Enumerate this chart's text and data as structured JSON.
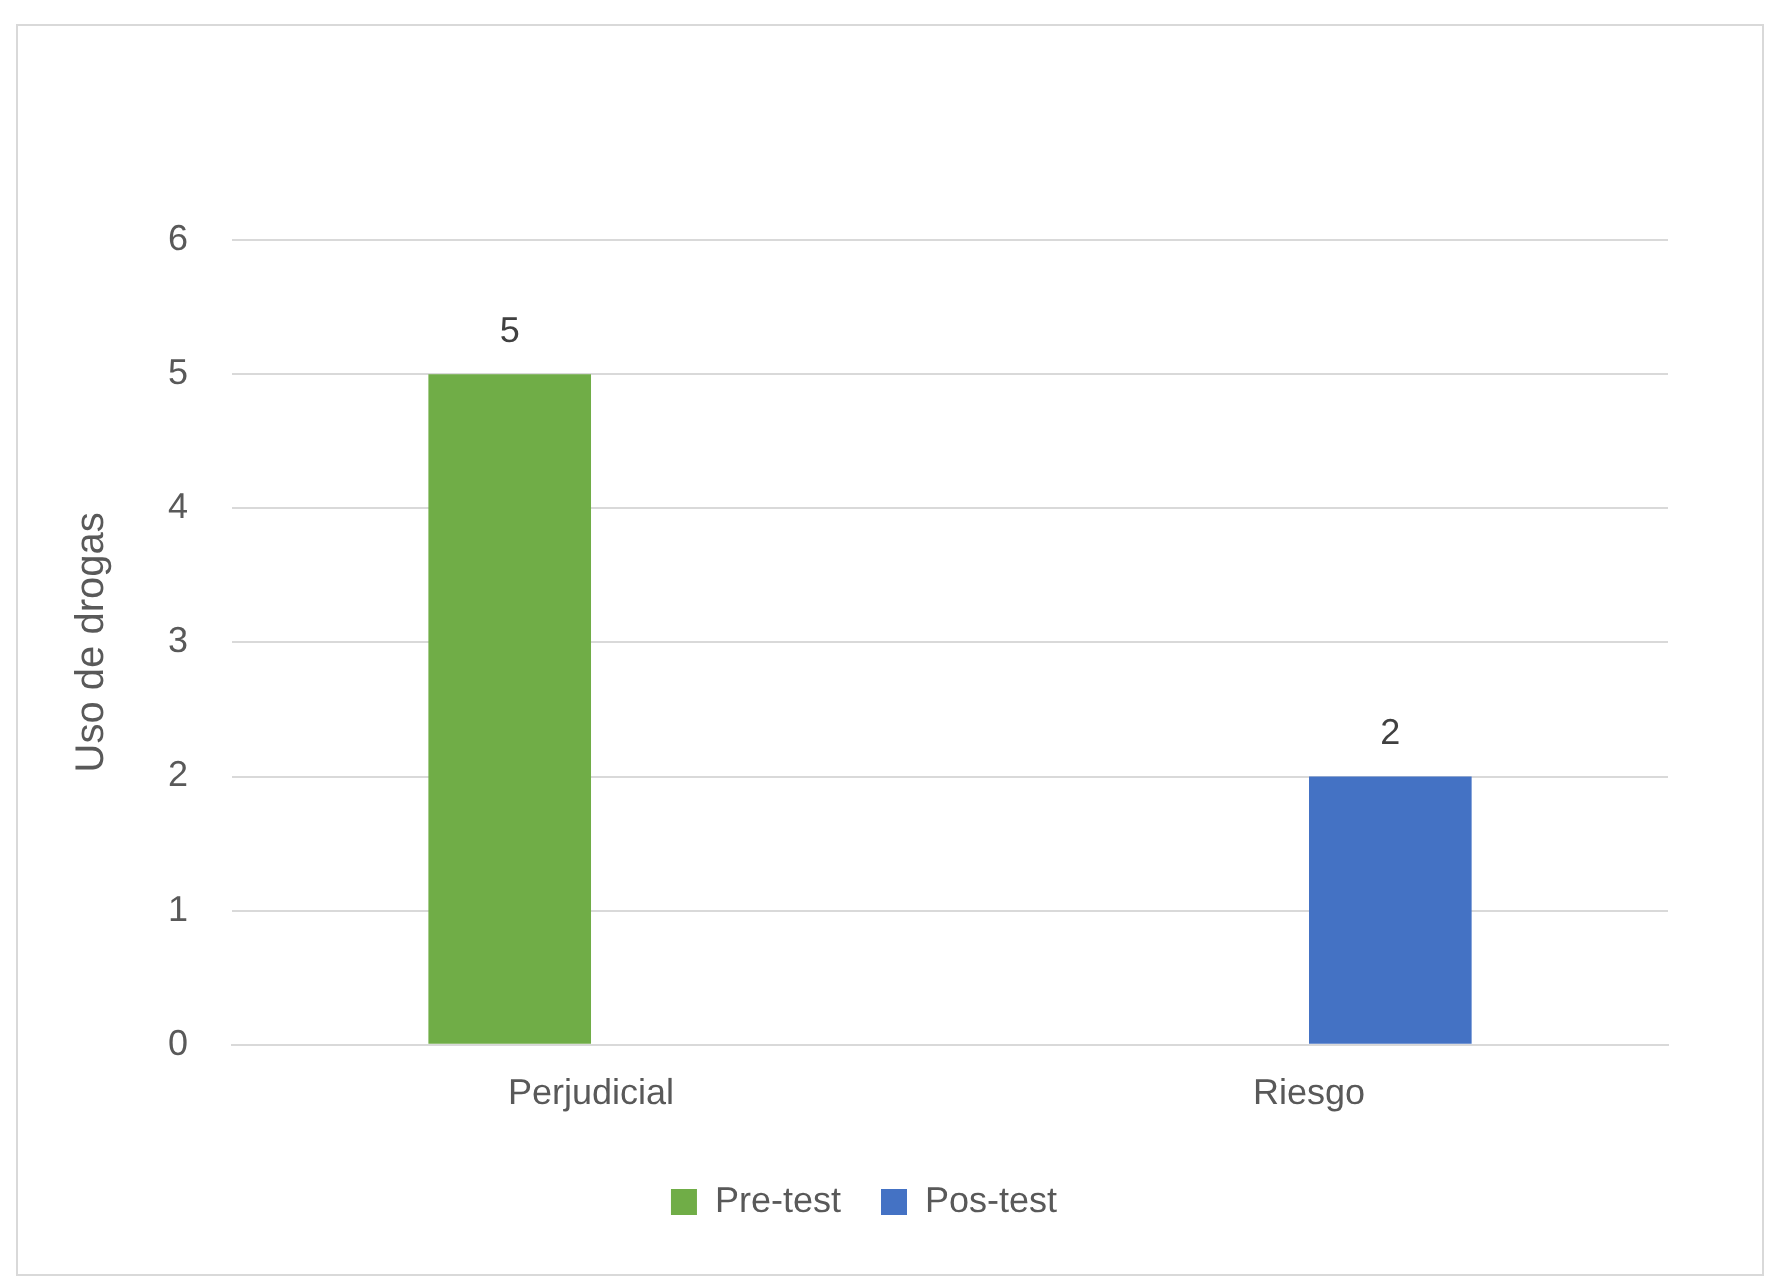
{
  "chart_data": {
    "type": "bar",
    "ylabel": "Uso de drogas",
    "categories": [
      "Perjudicial",
      "Riesgo"
    ],
    "series": [
      {
        "name": "Pre-test",
        "color": "#70ad47",
        "values": [
          5,
          null
        ]
      },
      {
        "name": "Pos-test",
        "color": "#4472c4",
        "values": [
          null,
          2
        ]
      }
    ],
    "ylim": [
      0,
      6
    ],
    "yticks": [
      0,
      1,
      2,
      3,
      4,
      5,
      6
    ],
    "grid": "y",
    "legend": "bottom",
    "data_labels": true
  }
}
